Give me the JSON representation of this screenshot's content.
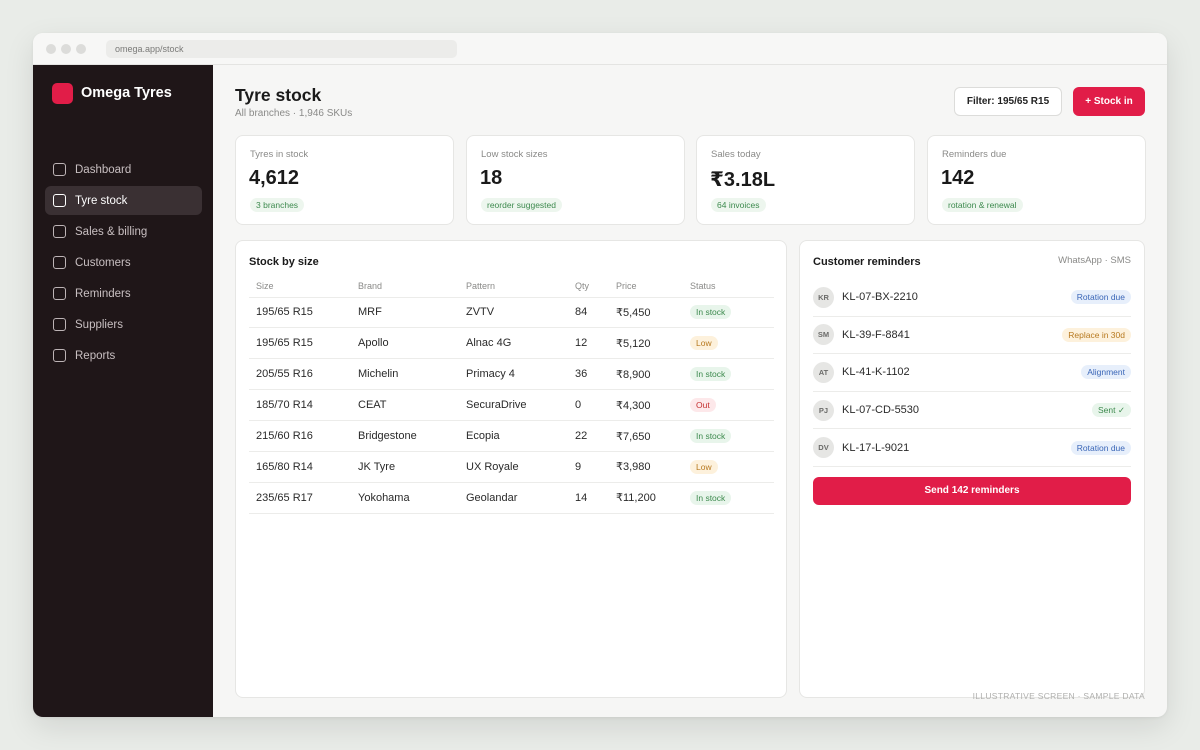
{
  "browser": {
    "url": "omega.app/stock"
  },
  "brand": {
    "name": "Omega Tyres",
    "color": "#e11d48"
  },
  "sidebar": {
    "items": [
      {
        "label": "Dashboard",
        "active": false
      },
      {
        "label": "Tyre stock",
        "active": true
      },
      {
        "label": "Sales & billing",
        "active": false
      },
      {
        "label": "Customers",
        "active": false
      },
      {
        "label": "Reminders",
        "active": false
      },
      {
        "label": "Suppliers",
        "active": false
      },
      {
        "label": "Reports",
        "active": false
      }
    ]
  },
  "header": {
    "title": "Tyre stock",
    "subtitle": "All branches · 1,946 SKUs",
    "filter_label": "Filter: 195/65 R15",
    "stock_in_label": "+ Stock in"
  },
  "stats": [
    {
      "label": "Tyres in stock",
      "value": "4,612",
      "pill": "3 branches"
    },
    {
      "label": "Low stock sizes",
      "value": "18",
      "pill": "reorder suggested"
    },
    {
      "label": "Sales today",
      "value": "₹3.18L",
      "pill": "64 invoices"
    },
    {
      "label": "Reminders due",
      "value": "142",
      "pill": "rotation & renewal"
    }
  ],
  "stock_table": {
    "title": "Stock by size",
    "columns": [
      "Size",
      "Brand",
      "Pattern",
      "Qty",
      "Price",
      "Status"
    ],
    "rows": [
      {
        "size": "195/65 R15",
        "brand": "MRF",
        "pattern": "ZVTV",
        "qty": "84",
        "price": "₹5,450",
        "status": "In stock",
        "status_kind": "ok"
      },
      {
        "size": "195/65 R15",
        "brand": "Apollo",
        "pattern": "Alnac 4G",
        "qty": "12",
        "price": "₹5,120",
        "status": "Low",
        "status_kind": "low"
      },
      {
        "size": "205/55 R16",
        "brand": "Michelin",
        "pattern": "Primacy 4",
        "qty": "36",
        "price": "₹8,900",
        "status": "In stock",
        "status_kind": "ok"
      },
      {
        "size": "185/70 R14",
        "brand": "CEAT",
        "pattern": "SecuraDrive",
        "qty": "0",
        "price": "₹4,300",
        "status": "Out",
        "status_kind": "out"
      },
      {
        "size": "215/60 R16",
        "brand": "Bridgestone",
        "pattern": "Ecopia",
        "qty": "22",
        "price": "₹7,650",
        "status": "In stock",
        "status_kind": "ok"
      },
      {
        "size": "165/80 R14",
        "brand": "JK Tyre",
        "pattern": "UX Royale",
        "qty": "9",
        "price": "₹3,980",
        "status": "Low",
        "status_kind": "low"
      },
      {
        "size": "235/65 R17",
        "brand": "Yokohama",
        "pattern": "Geolandar",
        "qty": "14",
        "price": "₹11,200",
        "status": "In stock",
        "status_kind": "ok"
      }
    ]
  },
  "reminders": {
    "title": "Customer reminders",
    "channels": "WhatsApp · SMS",
    "items": [
      {
        "initials": "KR",
        "plate": "KL-07-BX-2210",
        "status": "Rotation due",
        "kind": "blue"
      },
      {
        "initials": "SM",
        "plate": "KL-39-F-8841",
        "status": "Replace in 30d",
        "kind": "orange"
      },
      {
        "initials": "AT",
        "plate": "KL-41-K-1102",
        "status": "Alignment",
        "kind": "blue"
      },
      {
        "initials": "PJ",
        "plate": "KL-07-CD-5530",
        "status": "Sent ✓",
        "kind": "green"
      },
      {
        "initials": "DV",
        "plate": "KL-17-L-9021",
        "status": "Rotation due",
        "kind": "blue"
      }
    ],
    "send_label": "Send 142 reminders"
  },
  "footnote": "ILLUSTRATIVE SCREEN · SAMPLE DATA",
  "badge_colors": {
    "ok": {
      "bg": "#e8f5eb",
      "fg": "#3d8a4e"
    },
    "low": {
      "bg": "#fdf1dc",
      "fg": "#b7791f"
    },
    "out": {
      "bg": "#fde8ea",
      "fg": "#c53030"
    },
    "blue": {
      "bg": "#e7effb",
      "fg": "#3a66b7"
    },
    "orange": {
      "bg": "#fdf1dc",
      "fg": "#b7791f"
    },
    "green": {
      "bg": "#e8f5eb",
      "fg": "#3d8a4e"
    }
  }
}
